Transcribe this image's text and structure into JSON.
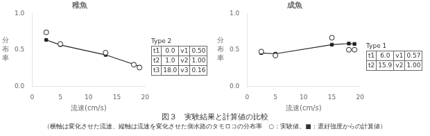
{
  "title": "図３　実験結果と計算値の比較",
  "subtitle": "（横軸は変化させた流速、縦軸は流速を変化させた側水路のタモロコの分布率　○：実験値、■：選好強度からの計算値）",
  "chart_data": [
    {
      "type": "scatter",
      "title": "稚魚",
      "xlabel": "流速(cm/s)",
      "ylabel": "分布率",
      "xlim": [
        0,
        20
      ],
      "xticks": [
        0,
        5,
        10,
        15,
        20
      ],
      "ylim": [
        0,
        1
      ],
      "yticks": [
        {
          "value": 0,
          "label": "0.0"
        },
        0.5,
        {
          "value": 1,
          "label": "1.0"
        }
      ],
      "grid": false,
      "series": [
        {
          "x": [
            2.5,
            5.0,
            13.0,
            18.0,
            19.0
          ],
          "values": [
            0.74,
            0.58,
            0.46,
            0.295,
            0.255
          ],
          "marker": "open_circle",
          "line_style": "none",
          "color": "#222222"
        },
        {
          "x": [
            2.5,
            5.0,
            13.0,
            18.0,
            19.0
          ],
          "values": [
            0.635,
            0.565,
            0.43,
            0.3,
            0.265
          ],
          "marker": "square",
          "line_style": "solid",
          "color": "#222222"
        }
      ],
      "table": {
        "title": "Type 2",
        "rows": [
          [
            "t1",
            "0.0",
            "v1",
            "0.50"
          ],
          [
            "t2",
            "1.0",
            "v2",
            "1.00"
          ],
          [
            "t3",
            "18.0",
            "v3",
            "0.16"
          ]
        ]
      }
    },
    {
      "type": "scatter",
      "title": "成魚",
      "xlabel": "流速(cm/s)",
      "ylabel": "分布率",
      "xlim": [
        0,
        20
      ],
      "xticks": [
        0,
        5,
        10,
        15,
        20
      ],
      "ylim": [
        0,
        1
      ],
      "yticks": [
        {
          "value": 0,
          "label": "0.0"
        },
        0.5,
        {
          "value": 1,
          "label": "1.0"
        }
      ],
      "grid": false,
      "series": [
        {
          "x": [
            2.5,
            5.0,
            15.0,
            18.0,
            19.0
          ],
          "values": [
            0.475,
            0.42,
            0.665,
            0.5,
            0.5
          ],
          "marker": "open_circle",
          "line_style": "none",
          "color": "#222222"
        },
        {
          "x": [
            2.5,
            5.0,
            15.0,
            18.0,
            19.0
          ],
          "values": [
            0.455,
            0.445,
            0.57,
            0.585,
            0.58
          ],
          "marker": "square",
          "line_style": "solid",
          "color": "#222222"
        }
      ],
      "table": {
        "title": "Type 1",
        "rows": [
          [
            "t1",
            "6.0",
            "v1",
            "0.57"
          ],
          [
            "t2",
            "15.9",
            "v2",
            "1.00"
          ]
        ]
      }
    }
  ]
}
